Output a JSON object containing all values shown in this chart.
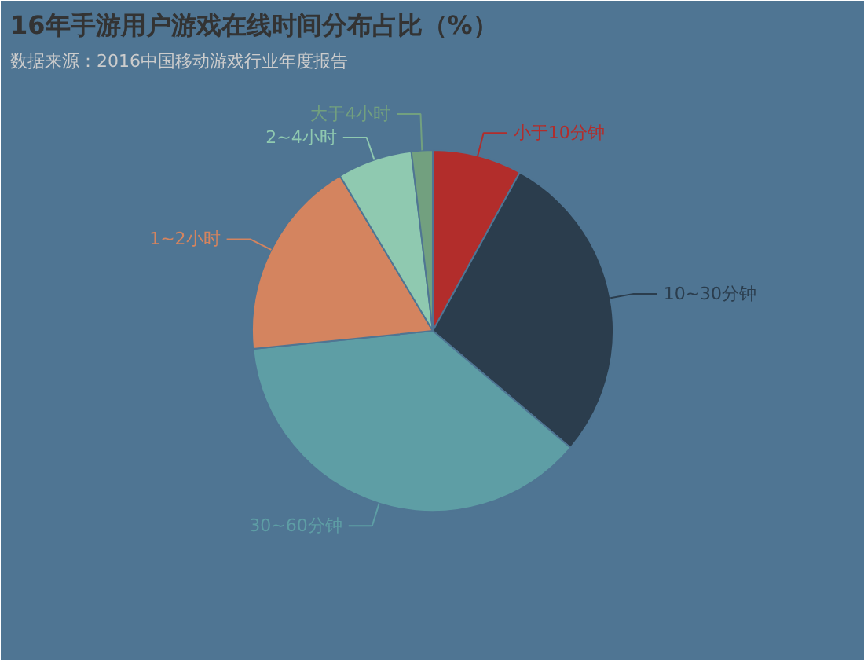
{
  "chart_data": {
    "type": "pie",
    "title": "16年手游用户游戏在线时间分布占比（%）",
    "subtitle": "数据来源：2016中国移动游戏行业年度报告",
    "categories": [
      "小于10分钟",
      "10~30分钟",
      "30~60分钟",
      "1~2小时",
      "2~4小时",
      "大于4小时"
    ],
    "values": [
      8,
      28.2,
      37.2,
      18,
      6.7,
      1.9
    ],
    "colors": [
      "#b22d2b",
      "#2b3d4d",
      "#5e9ea5",
      "#d4845f",
      "#8fc9b0",
      "#72a07f"
    ]
  }
}
